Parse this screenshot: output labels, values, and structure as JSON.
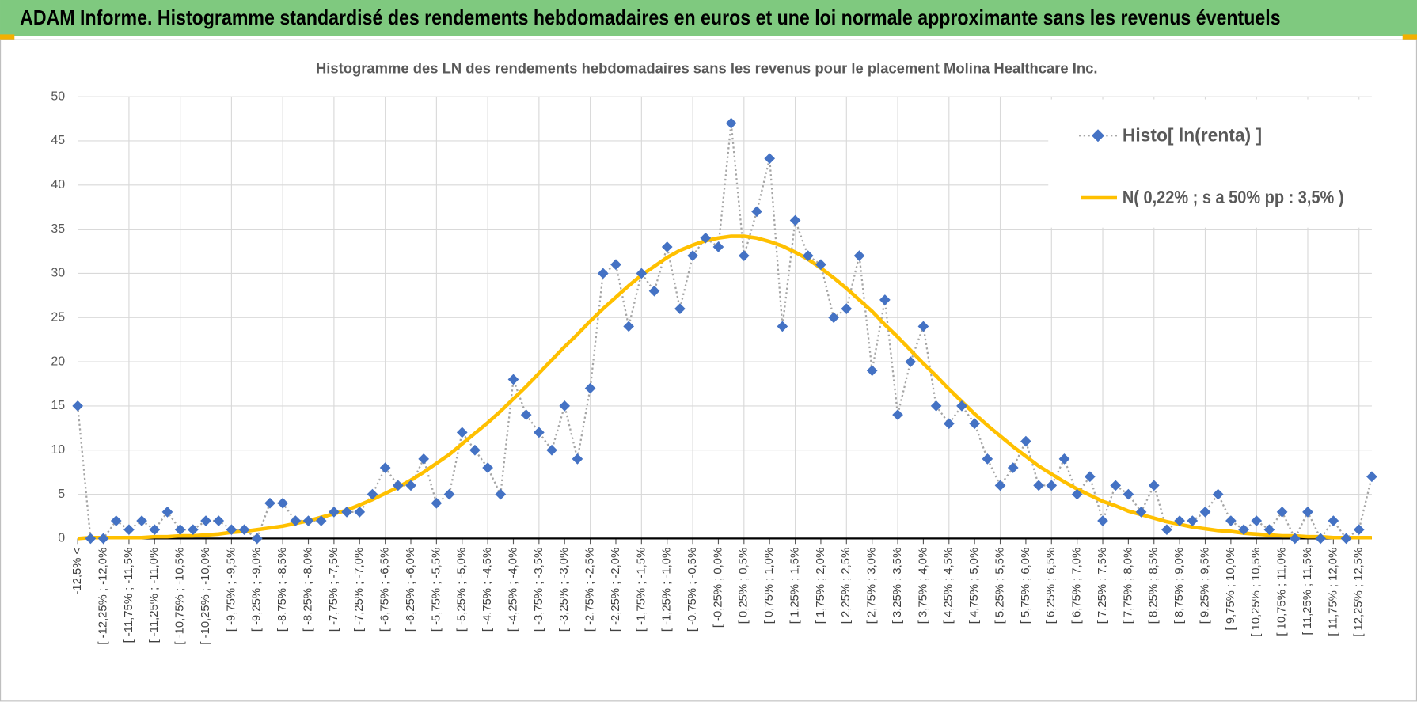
{
  "header": {
    "title": "ADAM Informe. Histogramme standardisé des rendements hebdomadaires en euros et une loi normale approximante sans les revenus éventuels"
  },
  "chart_data": {
    "type": "line",
    "title": "Histogramme  des LN des rendements hebdomadaires sans les revenus pour le placement Molina Healthcare Inc.",
    "categories": [
      "-12,5% <",
      null,
      "[ -12,25% ; -12,0%",
      null,
      "[ -11,75% ; -11,5%",
      null,
      "[ -11,25% ; -11,0%",
      null,
      "[ -10,75% ; -10,5%",
      null,
      "[ -10,25% ; -10,0%",
      null,
      "[ -9,75% ; -9,5%",
      null,
      "[ -9,25% ; -9,0%",
      null,
      "[ -8,75% ; -8,5%",
      null,
      "[ -8,25% ; -8,0%",
      null,
      "[ -7,75% ; -7,5%",
      null,
      "[ -7,25% ; -7,0%",
      null,
      "[ -6,75% ; -6,5%",
      null,
      "[ -6,25% ; -6,0%",
      null,
      "[ -5,75% ; -5,5%",
      null,
      "[ -5,25% ; -5,0%",
      null,
      "[ -4,75% ; -4,5%",
      null,
      "[ -4,25% ; -4,0%",
      null,
      "[ -3,75% ; -3,5%",
      null,
      "[ -3,25% ; -3,0%",
      null,
      "[ -2,75% ; -2,5%",
      null,
      "[ -2,25% ; -2,0%",
      null,
      "[ -1,75% ; -1,5%",
      null,
      "[ -1,25% ; -1,0%",
      null,
      "[ -0,75% ; -0,5%",
      null,
      "[ -0,25% ; 0,0%",
      null,
      "[ 0,25% ; 0,5%",
      null,
      "[ 0,75% ; 1,0%",
      null,
      "[ 1,25% ; 1,5%",
      null,
      "[ 1,75% ; 2,0%",
      null,
      "[ 2,25% ; 2,5%",
      null,
      "[ 2,75% ; 3,0%",
      null,
      "[ 3,25% ; 3,5%",
      null,
      "[ 3,75% ; 4,0%",
      null,
      "[ 4,25% ; 4,5%",
      null,
      "[ 4,75% ; 5,0%",
      null,
      "[ 5,25% ; 5,5%",
      null,
      "[ 5,75% ; 6,0%",
      null,
      "[ 6,25% ; 6,5%",
      null,
      "[ 6,75% ; 7,0%",
      null,
      "[ 7,25% ; 7,5%",
      null,
      "[ 7,75% ; 8,0%",
      null,
      "[ 8,25% ; 8,5%",
      null,
      "[ 8,75% ; 9,0%",
      null,
      "[ 9,25% ; 9,5%",
      null,
      "[ 9,75% ; 10,0%",
      null,
      "[ 10,25% ; 10,5%",
      null,
      "[ 10,75% ; 11,0%",
      null,
      "[ 11,25% ; 11,5%",
      null,
      "[ 11,75% ; 12,0%",
      null,
      "[ 12,25% ; 12,5%",
      null
    ],
    "series": [
      {
        "name": "Histo[ ln(renta) ]",
        "color": "#4472c4",
        "line_color": "#a5a5a5",
        "marker": "diamond",
        "values": [
          15,
          0,
          0,
          2,
          1,
          2,
          1,
          3,
          1,
          1,
          2,
          2,
          1,
          1,
          0,
          4,
          4,
          2,
          2,
          2,
          3,
          3,
          3,
          5,
          8,
          6,
          6,
          9,
          4,
          5,
          12,
          10,
          8,
          5,
          18,
          14,
          12,
          10,
          15,
          9,
          17,
          30,
          31,
          24,
          30,
          28,
          33,
          26,
          32,
          34,
          33,
          47,
          32,
          37,
          43,
          24,
          36,
          32,
          31,
          25,
          26,
          32,
          19,
          27,
          14,
          20,
          24,
          15,
          13,
          15,
          13,
          9,
          6,
          8,
          11,
          6,
          6,
          9,
          5,
          7,
          2,
          6,
          5,
          3,
          6,
          1,
          2,
          2,
          3,
          5,
          2,
          1,
          2,
          1,
          3,
          0,
          3,
          0,
          2,
          0,
          1,
          7
        ]
      },
      {
        "name": "N( 0,22% ; s a 50% pp : 3,5% )",
        "color": "#ffc000",
        "values": [
          0.0,
          0.1,
          0.1,
          0.1,
          0.1,
          0.1,
          0.2,
          0.2,
          0.3,
          0.3,
          0.4,
          0.5,
          0.7,
          0.8,
          1.0,
          1.2,
          1.4,
          1.7,
          2.0,
          2.4,
          2.8,
          3.2,
          3.8,
          4.4,
          5.1,
          5.8,
          6.6,
          7.5,
          8.5,
          9.5,
          10.7,
          11.9,
          13.1,
          14.4,
          15.8,
          17.2,
          18.7,
          20.2,
          21.7,
          23.1,
          24.6,
          26.0,
          27.3,
          28.6,
          29.8,
          30.8,
          31.8,
          32.6,
          33.2,
          33.7,
          34.0,
          34.2,
          34.2,
          34.0,
          33.6,
          33.1,
          32.4,
          31.6,
          30.6,
          29.5,
          28.3,
          27.0,
          25.7,
          24.2,
          22.8,
          21.3,
          19.8,
          18.4,
          16.9,
          15.5,
          14.1,
          12.8,
          11.6,
          10.4,
          9.3,
          8.2,
          7.3,
          6.4,
          5.6,
          4.9,
          4.2,
          3.7,
          3.1,
          2.7,
          2.3,
          1.9,
          1.6,
          1.3,
          1.1,
          0.9,
          0.8,
          0.6,
          0.5,
          0.4,
          0.3,
          0.3,
          0.2,
          0.2,
          0.1,
          0.1,
          0.1,
          0.1
        ]
      }
    ],
    "ylim": [
      0,
      50
    ],
    "yticks": [
      0,
      5,
      10,
      15,
      20,
      25,
      30,
      35,
      40,
      45,
      50
    ],
    "grid": true,
    "legend": "top-right"
  }
}
